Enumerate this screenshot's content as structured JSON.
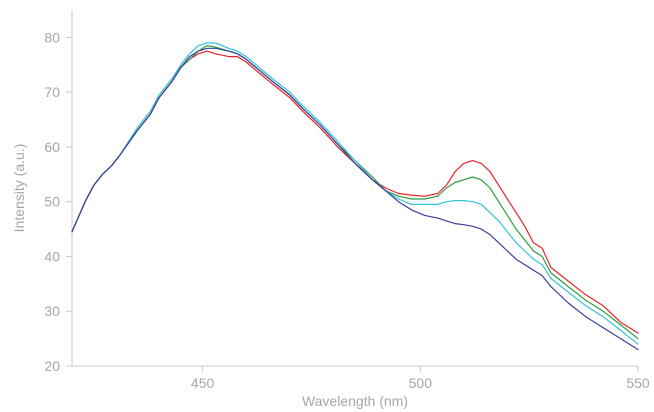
{
  "chart_data": {
    "type": "line",
    "title": "",
    "xlabel": "Wavelength (nm)",
    "ylabel": "Intensity (a.u.)",
    "xlim": [
      420,
      550
    ],
    "ylim": [
      20,
      85
    ],
    "x_ticks": [
      450,
      500,
      550
    ],
    "y_ticks": [
      20,
      30,
      40,
      50,
      60,
      70,
      80
    ],
    "grid": false,
    "legend": "none",
    "series": [
      {
        "color": "#e8232b",
        "points": [
          [
            420,
            44.5
          ],
          [
            423,
            50
          ],
          [
            425,
            53
          ],
          [
            427,
            55
          ],
          [
            429,
            56.5
          ],
          [
            431,
            58.5
          ],
          [
            435,
            63
          ],
          [
            438,
            66
          ],
          [
            440,
            69
          ],
          [
            443,
            72
          ],
          [
            445,
            74.5
          ],
          [
            447,
            76
          ],
          [
            449,
            77
          ],
          [
            451,
            77.5
          ],
          [
            453,
            77
          ],
          [
            456,
            76.5
          ],
          [
            458,
            76.5
          ],
          [
            460,
            75.5
          ],
          [
            463,
            73.5
          ],
          [
            466,
            71.5
          ],
          [
            470,
            69
          ],
          [
            473,
            66.5
          ],
          [
            477,
            63.5
          ],
          [
            481,
            60
          ],
          [
            485,
            57
          ],
          [
            489,
            54
          ],
          [
            492,
            52.5
          ],
          [
            495,
            51.5
          ],
          [
            498,
            51.2
          ],
          [
            501,
            51
          ],
          [
            504,
            51.5
          ],
          [
            506,
            53
          ],
          [
            508,
            55.5
          ],
          [
            510,
            57
          ],
          [
            512,
            57.5
          ],
          [
            514,
            57
          ],
          [
            516,
            55.5
          ],
          [
            518,
            53
          ],
          [
            520,
            50.5
          ],
          [
            522,
            48
          ],
          [
            524,
            45.5
          ],
          [
            526,
            42.5
          ],
          [
            528,
            41.5
          ],
          [
            530,
            38
          ],
          [
            534,
            35.5
          ],
          [
            538,
            33
          ],
          [
            542,
            31
          ],
          [
            546,
            28
          ],
          [
            550,
            26
          ]
        ]
      },
      {
        "color": "#2e9e3e",
        "points": [
          [
            420,
            44.5
          ],
          [
            423,
            50
          ],
          [
            425,
            53
          ],
          [
            427,
            55
          ],
          [
            429,
            56.5
          ],
          [
            431,
            58.5
          ],
          [
            435,
            63
          ],
          [
            438,
            66
          ],
          [
            440,
            69
          ],
          [
            443,
            72
          ],
          [
            445,
            74.5
          ],
          [
            447,
            76
          ],
          [
            449,
            77.5
          ],
          [
            451,
            78.5
          ],
          [
            453,
            78.2
          ],
          [
            456,
            77.5
          ],
          [
            458,
            77
          ],
          [
            460,
            76
          ],
          [
            463,
            74
          ],
          [
            466,
            72
          ],
          [
            470,
            69.5
          ],
          [
            473,
            67
          ],
          [
            477,
            64
          ],
          [
            481,
            60.5
          ],
          [
            485,
            57.5
          ],
          [
            489,
            54.5
          ],
          [
            492,
            52
          ],
          [
            495,
            51
          ],
          [
            498,
            50.5
          ],
          [
            501,
            50.5
          ],
          [
            504,
            51
          ],
          [
            506,
            52.5
          ],
          [
            508,
            53.5
          ],
          [
            510,
            54
          ],
          [
            512,
            54.5
          ],
          [
            514,
            54
          ],
          [
            516,
            52.5
          ],
          [
            518,
            50
          ],
          [
            520,
            47.5
          ],
          [
            522,
            45
          ],
          [
            524,
            43
          ],
          [
            526,
            41
          ],
          [
            528,
            40
          ],
          [
            530,
            37
          ],
          [
            534,
            34.5
          ],
          [
            538,
            32
          ],
          [
            542,
            30
          ],
          [
            546,
            27.5
          ],
          [
            550,
            25
          ]
        ]
      },
      {
        "color": "#33c2d6",
        "points": [
          [
            420,
            44.5
          ],
          [
            423,
            50
          ],
          [
            425,
            53
          ],
          [
            427,
            55
          ],
          [
            429,
            56.5
          ],
          [
            431,
            58.5
          ],
          [
            435,
            63.5
          ],
          [
            438,
            66.5
          ],
          [
            440,
            69.5
          ],
          [
            443,
            72.5
          ],
          [
            445,
            75
          ],
          [
            447,
            77
          ],
          [
            449,
            78.5
          ],
          [
            451,
            79
          ],
          [
            453,
            79
          ],
          [
            456,
            78
          ],
          [
            458,
            77.5
          ],
          [
            460,
            76.5
          ],
          [
            463,
            74.5
          ],
          [
            466,
            72.5
          ],
          [
            470,
            70
          ],
          [
            473,
            67.5
          ],
          [
            477,
            64.5
          ],
          [
            481,
            61
          ],
          [
            485,
            57.5
          ],
          [
            489,
            54
          ],
          [
            492,
            52
          ],
          [
            495,
            50.5
          ],
          [
            498,
            49.5
          ],
          [
            501,
            49.5
          ],
          [
            504,
            49.5
          ],
          [
            506,
            50
          ],
          [
            508,
            50.2
          ],
          [
            510,
            50.2
          ],
          [
            512,
            50
          ],
          [
            514,
            49.5
          ],
          [
            516,
            48
          ],
          [
            518,
            46.5
          ],
          [
            520,
            44.5
          ],
          [
            522,
            42.5
          ],
          [
            524,
            41
          ],
          [
            526,
            39.5
          ],
          [
            528,
            38.5
          ],
          [
            530,
            36
          ],
          [
            534,
            33.5
          ],
          [
            538,
            31
          ],
          [
            542,
            29
          ],
          [
            546,
            26.5
          ],
          [
            550,
            24
          ]
        ]
      },
      {
        "color": "#3b3f9e",
        "points": [
          [
            420,
            44.5
          ],
          [
            423,
            50
          ],
          [
            425,
            53
          ],
          [
            427,
            55
          ],
          [
            429,
            56.5
          ],
          [
            431,
            58.5
          ],
          [
            435,
            63
          ],
          [
            438,
            66
          ],
          [
            440,
            69
          ],
          [
            443,
            72
          ],
          [
            445,
            74.5
          ],
          [
            447,
            76.5
          ],
          [
            449,
            77.5
          ],
          [
            451,
            78
          ],
          [
            453,
            78
          ],
          [
            456,
            77.5
          ],
          [
            458,
            77
          ],
          [
            460,
            76
          ],
          [
            463,
            74
          ],
          [
            466,
            72
          ],
          [
            470,
            69.5
          ],
          [
            473,
            67
          ],
          [
            477,
            64
          ],
          [
            481,
            60.5
          ],
          [
            485,
            57
          ],
          [
            489,
            54
          ],
          [
            492,
            52
          ],
          [
            495,
            50
          ],
          [
            498,
            48.5
          ],
          [
            501,
            47.5
          ],
          [
            504,
            47
          ],
          [
            506,
            46.5
          ],
          [
            508,
            46
          ],
          [
            510,
            45.8
          ],
          [
            512,
            45.5
          ],
          [
            514,
            45
          ],
          [
            516,
            44
          ],
          [
            518,
            42.5
          ],
          [
            520,
            41
          ],
          [
            522,
            39.5
          ],
          [
            524,
            38.5
          ],
          [
            526,
            37.5
          ],
          [
            528,
            36.5
          ],
          [
            530,
            34.5
          ],
          [
            534,
            31.5
          ],
          [
            538,
            29
          ],
          [
            542,
            27
          ],
          [
            546,
            25
          ],
          [
            550,
            23
          ]
        ]
      }
    ]
  }
}
